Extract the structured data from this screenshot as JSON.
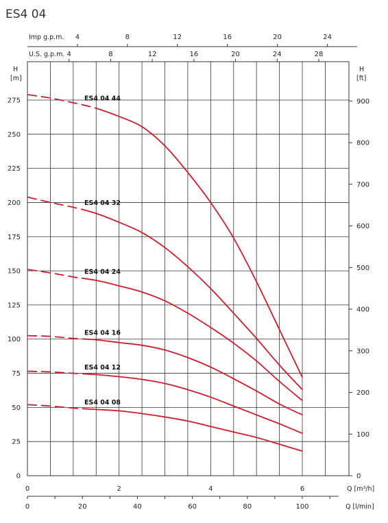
{
  "title": "ES4 04",
  "scales": {
    "imp_label": "Imp g.p.m.",
    "imp_ticks": [
      "4",
      "8",
      "12",
      "16",
      "20",
      "24"
    ],
    "us_label": "U.S. g.p.m.",
    "us_ticks": [
      "4",
      "8",
      "12",
      "16",
      "20",
      "24",
      "28"
    ]
  },
  "axes": {
    "left_label_1": "H",
    "left_label_2": "[m]",
    "right_label_1": "H",
    "right_label_2": "[ft]",
    "x1_label": "Q [m³/h]",
    "x2_label": "Q [l/min]"
  },
  "chart_data": {
    "type": "line",
    "title": "ES4 04",
    "xlabel": "Q [m³/h]",
    "ylabel": "H [m]",
    "x_range": [
      0,
      6
    ],
    "y_range": [
      0,
      280
    ],
    "y_ticks": [
      0,
      25,
      50,
      75,
      100,
      125,
      150,
      175,
      200,
      225,
      250,
      275
    ],
    "x_ticks": [
      0,
      2,
      4,
      6
    ],
    "x2_ticks": [
      0,
      20,
      40,
      60,
      80,
      100
    ],
    "y2_ticks": [
      0,
      100,
      200,
      300,
      400,
      500,
      600,
      700,
      800,
      900
    ],
    "grid": true,
    "legend": "none",
    "series": [
      {
        "name": "ES4 04 44",
        "dashed_until": 1.5,
        "points": [
          [
            0,
            279
          ],
          [
            0.5,
            276.5
          ],
          [
            1.0,
            273
          ],
          [
            1.5,
            269
          ],
          [
            2.0,
            263
          ],
          [
            2.5,
            255.5
          ],
          [
            3.0,
            241.5
          ],
          [
            3.5,
            222
          ],
          [
            4.0,
            200
          ],
          [
            4.5,
            174
          ],
          [
            5.0,
            142
          ],
          [
            5.5,
            107
          ],
          [
            6.0,
            72
          ]
        ]
      },
      {
        "name": "ES4 04 32",
        "dashed_until": 1.2,
        "points": [
          [
            0,
            204
          ],
          [
            0.5,
            200
          ],
          [
            1.0,
            196.5
          ],
          [
            1.5,
            192
          ],
          [
            2.0,
            185.5
          ],
          [
            2.5,
            178
          ],
          [
            3.0,
            167
          ],
          [
            3.5,
            153
          ],
          [
            4.0,
            137
          ],
          [
            4.5,
            119
          ],
          [
            5.0,
            100.5
          ],
          [
            5.5,
            81
          ],
          [
            6.0,
            63
          ]
        ]
      },
      {
        "name": "ES4 04 24",
        "dashed_until": 1.2,
        "points": [
          [
            0,
            151
          ],
          [
            0.5,
            148.5
          ],
          [
            1.0,
            145.5
          ],
          [
            1.5,
            143
          ],
          [
            2.0,
            139
          ],
          [
            2.5,
            134.5
          ],
          [
            3.0,
            128
          ],
          [
            3.5,
            119
          ],
          [
            4.0,
            108.5
          ],
          [
            4.5,
            97
          ],
          [
            5.0,
            84
          ],
          [
            5.5,
            69
          ],
          [
            6.0,
            55
          ]
        ]
      },
      {
        "name": "ES4 04 16",
        "dashed_until": 1.2,
        "points": [
          [
            0,
            102.5
          ],
          [
            0.5,
            102
          ],
          [
            1.0,
            100.5
          ],
          [
            1.5,
            99.5
          ],
          [
            2.0,
            97.5
          ],
          [
            2.5,
            95.5
          ],
          [
            3.0,
            92
          ],
          [
            3.5,
            86.5
          ],
          [
            4.0,
            79.5
          ],
          [
            4.5,
            71
          ],
          [
            5.0,
            62
          ],
          [
            5.5,
            52.5
          ],
          [
            6.0,
            44.5
          ]
        ]
      },
      {
        "name": "ES4 04 12",
        "dashed_until": 1.2,
        "points": [
          [
            0,
            76.5
          ],
          [
            0.5,
            76
          ],
          [
            1.0,
            75
          ],
          [
            1.5,
            74
          ],
          [
            2.0,
            72.5
          ],
          [
            2.5,
            70.5
          ],
          [
            3.0,
            67.5
          ],
          [
            3.5,
            63
          ],
          [
            4.0,
            57.5
          ],
          [
            4.5,
            51
          ],
          [
            5.0,
            44.5
          ],
          [
            5.5,
            38
          ],
          [
            6.0,
            31
          ]
        ]
      },
      {
        "name": "ES4 04 08",
        "dashed_until": 1.2,
        "points": [
          [
            0,
            52
          ],
          [
            0.5,
            51
          ],
          [
            1.0,
            49.5
          ],
          [
            1.5,
            48.5
          ],
          [
            2.0,
            47.5
          ],
          [
            2.5,
            45.5
          ],
          [
            3.0,
            43
          ],
          [
            3.5,
            40
          ],
          [
            4.0,
            36
          ],
          [
            4.5,
            32
          ],
          [
            5.0,
            28
          ],
          [
            5.5,
            23
          ],
          [
            6.0,
            18
          ]
        ]
      }
    ]
  },
  "colors": {
    "curve": "#d11a2a",
    "grid": "#333333"
  }
}
